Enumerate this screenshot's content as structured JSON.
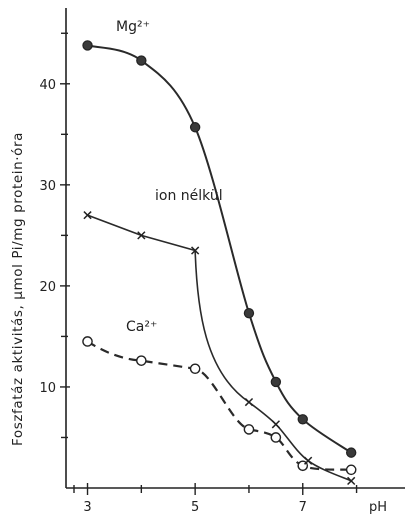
{
  "chart_data": {
    "type": "line",
    "title": "",
    "xlabel": "pH",
    "ylabel": "Foszfatáz aktivitás, µmol Pi/mg protein·óra",
    "xlim": [
      2.6,
      8.9
    ],
    "ylim": [
      0,
      47.5
    ],
    "x_ticks": [
      3,
      5,
      7
    ],
    "x_minor_ticks": [
      4,
      6,
      8
    ],
    "y_ticks": [
      10,
      20,
      30,
      40
    ],
    "y_minor_ticks": [
      5,
      15,
      25,
      35,
      45
    ],
    "grid": false,
    "series": [
      {
        "name": "Mg²⁺",
        "marker": "filled-circle",
        "line": "solid",
        "x": [
          3.0,
          4.0,
          5.0,
          6.0,
          6.5,
          7.0,
          7.9
        ],
        "y": [
          43.8,
          42.3,
          35.7,
          17.3,
          10.5,
          6.8,
          3.5
        ]
      },
      {
        "name": "ion nélkül",
        "marker": "cross",
        "line": "solid",
        "x": [
          3.0,
          4.0,
          5.0,
          6.0,
          6.5,
          7.1,
          7.9
        ],
        "y": [
          27.0,
          25.0,
          23.5,
          8.5,
          6.3,
          2.7,
          0.7
        ]
      },
      {
        "name": "Ca²⁺",
        "marker": "open-circle",
        "line": "dashed",
        "x": [
          3.0,
          4.0,
          5.0,
          6.0,
          6.5,
          7.0,
          7.9
        ],
        "y": [
          14.5,
          12.6,
          11.8,
          5.8,
          5.0,
          2.2,
          1.8
        ]
      }
    ]
  }
}
